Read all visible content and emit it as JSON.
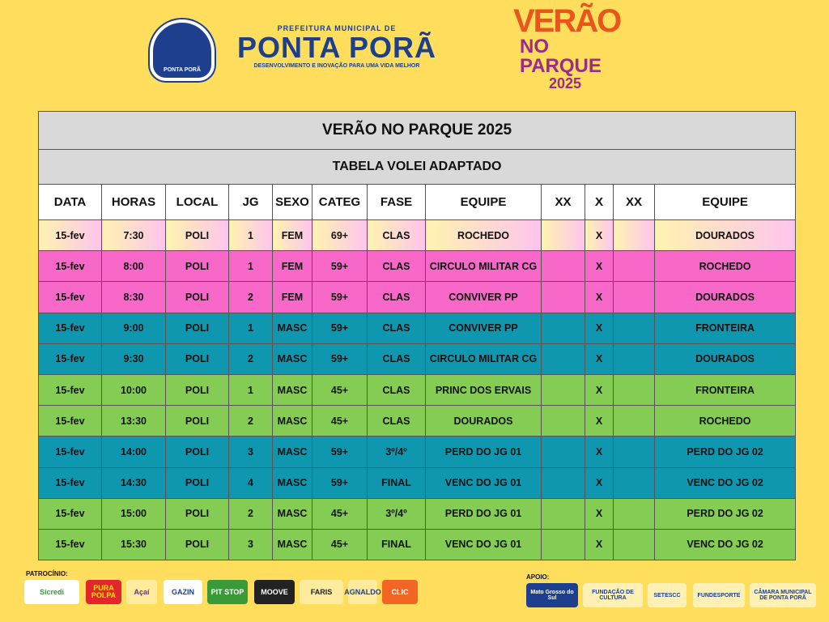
{
  "header": {
    "org_top": "PREFEITURA MUNICIPAL DE",
    "org_name": "PONTA PORÃ",
    "org_slogan": "DESENVOLVIMENTO E INOVAÇÃO PARA UMA VIDA MELHOR",
    "crest_label": "PONTA PORÃ",
    "event_logo": {
      "line1": "VERÃO",
      "line2": "NO PARQUE",
      "line3": "2025"
    }
  },
  "table": {
    "title": "VERÃO NO PARQUE 2025",
    "subtitle": "TABELA VOLEI ADAPTADO",
    "columns": [
      "DATA",
      "HORAS",
      "LOCAL",
      "JG",
      "SEXO",
      "CATEG",
      "FASE",
      "EQUIPE",
      "XX",
      "X",
      "XX",
      "EQUIPE"
    ],
    "rows": [
      {
        "data": "15-fev",
        "horas": "7:30",
        "local": "POLI",
        "jg": "1",
        "sexo": "FEM",
        "categ": "69+",
        "fase": "CLAS",
        "equipe1": "ROCHEDO",
        "x": "X",
        "equipe2": "DOURADOS"
      },
      {
        "data": "15-fev",
        "horas": "8:00",
        "local": "POLI",
        "jg": "1",
        "sexo": "FEM",
        "categ": "59+",
        "fase": "CLAS",
        "equipe1": "CIRCULO MILITAR CG",
        "x": "X",
        "equipe2": "ROCHEDO"
      },
      {
        "data": "15-fev",
        "horas": "8:30",
        "local": "POLI",
        "jg": "2",
        "sexo": "FEM",
        "categ": "59+",
        "fase": "CLAS",
        "equipe1": "CONVIVER PP",
        "x": "X",
        "equipe2": "DOURADOS"
      },
      {
        "data": "15-fev",
        "horas": "9:00",
        "local": "POLI",
        "jg": "1",
        "sexo": "MASC",
        "categ": "59+",
        "fase": "CLAS",
        "equipe1": "CONVIVER PP",
        "x": "X",
        "equipe2": "FRONTEIRA"
      },
      {
        "data": "15-fev",
        "horas": "9:30",
        "local": "POLI",
        "jg": "2",
        "sexo": "MASC",
        "categ": "59+",
        "fase": "CLAS",
        "equipe1": "CIRCULO MILITAR CG",
        "x": "X",
        "equipe2": "DOURADOS"
      },
      {
        "data": "15-fev",
        "horas": "10:00",
        "local": "POLI",
        "jg": "1",
        "sexo": "MASC",
        "categ": "45+",
        "fase": "CLAS",
        "equipe1": "PRINC DOS ERVAIS",
        "x": "X",
        "equipe2": "FRONTEIRA"
      },
      {
        "data": "15-fev",
        "horas": "13:30",
        "local": "POLI",
        "jg": "2",
        "sexo": "MASC",
        "categ": "45+",
        "fase": "CLAS",
        "equipe1": "DOURADOS",
        "x": "X",
        "equipe2": "ROCHEDO"
      },
      {
        "data": "15-fev",
        "horas": "14:00",
        "local": "POLI",
        "jg": "3",
        "sexo": "MASC",
        "categ": "59+",
        "fase": "3º/4º",
        "equipe1": "PERD DO JG 01",
        "x": "X",
        "equipe2": "PERD DO JG 02"
      },
      {
        "data": "15-fev",
        "horas": "14:30",
        "local": "POLI",
        "jg": "4",
        "sexo": "MASC",
        "categ": "59+",
        "fase": "FINAL",
        "equipe1": "VENC DO JG 01",
        "x": "X",
        "equipe2": "VENC DO JG 02"
      },
      {
        "data": "15-fev",
        "horas": "15:00",
        "local": "POLI",
        "jg": "2",
        "sexo": "MASC",
        "categ": "45+",
        "fase": "3º/4º",
        "equipe1": "PERD DO JG 01",
        "x": "X",
        "equipe2": "PERD DO JG 02"
      },
      {
        "data": "15-fev",
        "horas": "15:30",
        "local": "POLI",
        "jg": "3",
        "sexo": "MASC",
        "categ": "45+",
        "fase": "FINAL",
        "equipe1": "VENC DO JG 01",
        "x": "X",
        "equipe2": "VENC DO JG 02"
      }
    ]
  },
  "footer": {
    "sponsors_label": "PATROCÍNIO:",
    "sponsors": [
      "Sicredi",
      "PURA POLPA",
      "Açaí",
      "GAZIN",
      "PIT STOP",
      "MOOVE",
      "FARIS",
      "AGNALDO",
      "CLIC"
    ],
    "support_label": "APOIO:",
    "supporters": [
      "Mato Grosso do Sul",
      "FUNDAÇÃO DE CULTURA",
      "SETESCC",
      "FUNDESPORTE",
      "CÂMARA MUNICIPAL DE PONTA PORÃ"
    ]
  }
}
